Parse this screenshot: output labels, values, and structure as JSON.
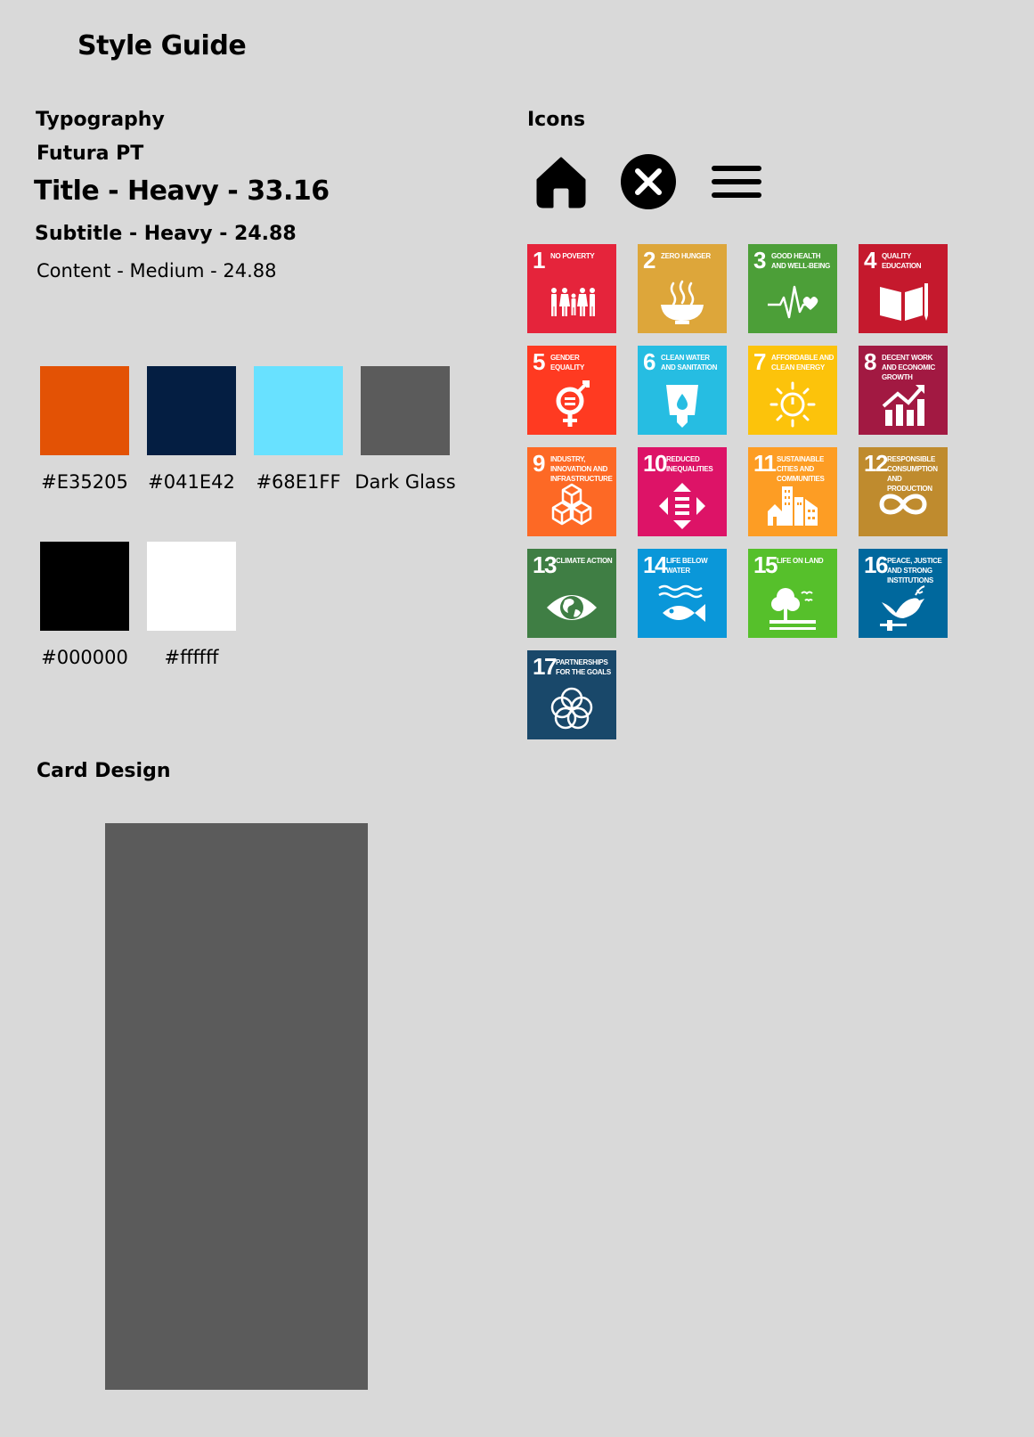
{
  "page": {
    "title": "Style Guide"
  },
  "typography": {
    "heading": "Typography",
    "font_name": "Futura PT",
    "title_sample": "Title - Heavy - 33.16",
    "subtitle_sample": "Subtitle - Heavy - 24.88",
    "content_sample": "Content - Medium - 24.88"
  },
  "colors": {
    "swatches": [
      {
        "label": "#E35205",
        "hex": "#E35205"
      },
      {
        "label": "#041E42",
        "hex": "#041E42"
      },
      {
        "label": "#68E1FF",
        "hex": "#68E1FF"
      },
      {
        "label": "Dark Glass",
        "hex": "#5B5B5B"
      },
      {
        "label": "#000000",
        "hex": "#000000"
      },
      {
        "label": "#ffffff",
        "hex": "#FFFFFF"
      }
    ]
  },
  "icons": {
    "heading": "Icons",
    "items": [
      "home-icon",
      "close-icon",
      "menu-icon"
    ]
  },
  "sdg": {
    "tiles": [
      {
        "num": "1",
        "text": "No Poverty",
        "color": "#E5243B",
        "icon": "people-icon"
      },
      {
        "num": "2",
        "text": "Zero Hunger",
        "color": "#DDA63A",
        "icon": "bowl-icon"
      },
      {
        "num": "3",
        "text": "Good Health and Well-Being",
        "color": "#4C9F38",
        "icon": "heartbeat-icon"
      },
      {
        "num": "4",
        "text": "Quality Education",
        "color": "#C5192D",
        "icon": "book-icon"
      },
      {
        "num": "5",
        "text": "Gender Equality",
        "color": "#FF3A21",
        "icon": "gender-icon"
      },
      {
        "num": "6",
        "text": "Clean Water and Sanitation",
        "color": "#26BDE2",
        "icon": "water-glass-icon"
      },
      {
        "num": "7",
        "text": "Affordable and Clean Energy",
        "color": "#FCC30B",
        "icon": "sun-power-icon"
      },
      {
        "num": "8",
        "text": "Decent Work and Economic Growth",
        "color": "#A21942",
        "icon": "growth-chart-icon"
      },
      {
        "num": "9",
        "text": "Industry, Innovation and Infrastructure",
        "color": "#FD6925",
        "icon": "cubes-icon"
      },
      {
        "num": "10",
        "text": "Reduced Inequalities",
        "color": "#DD1367",
        "icon": "equality-arrows-icon"
      },
      {
        "num": "11",
        "text": "Sustainable Cities and Communities",
        "color": "#FD9D24",
        "icon": "city-icon"
      },
      {
        "num": "12",
        "text": "Responsible Consumption and Production",
        "color": "#BF8B2E",
        "icon": "infinity-icon"
      },
      {
        "num": "13",
        "text": "Climate Action",
        "color": "#3F7E44",
        "icon": "eye-globe-icon"
      },
      {
        "num": "14",
        "text": "Life Below Water",
        "color": "#0A97D9",
        "icon": "fish-icon"
      },
      {
        "num": "15",
        "text": "Life On Land",
        "color": "#56C02B",
        "icon": "tree-icon"
      },
      {
        "num": "16",
        "text": "Peace, Justice and Strong Institutions",
        "color": "#00689D",
        "icon": "dove-icon"
      },
      {
        "num": "17",
        "text": "Partnerships for the Goals",
        "color": "#19486A",
        "icon": "rings-icon"
      }
    ]
  },
  "card": {
    "heading": "Card Design",
    "color": "#5B5B5B"
  }
}
